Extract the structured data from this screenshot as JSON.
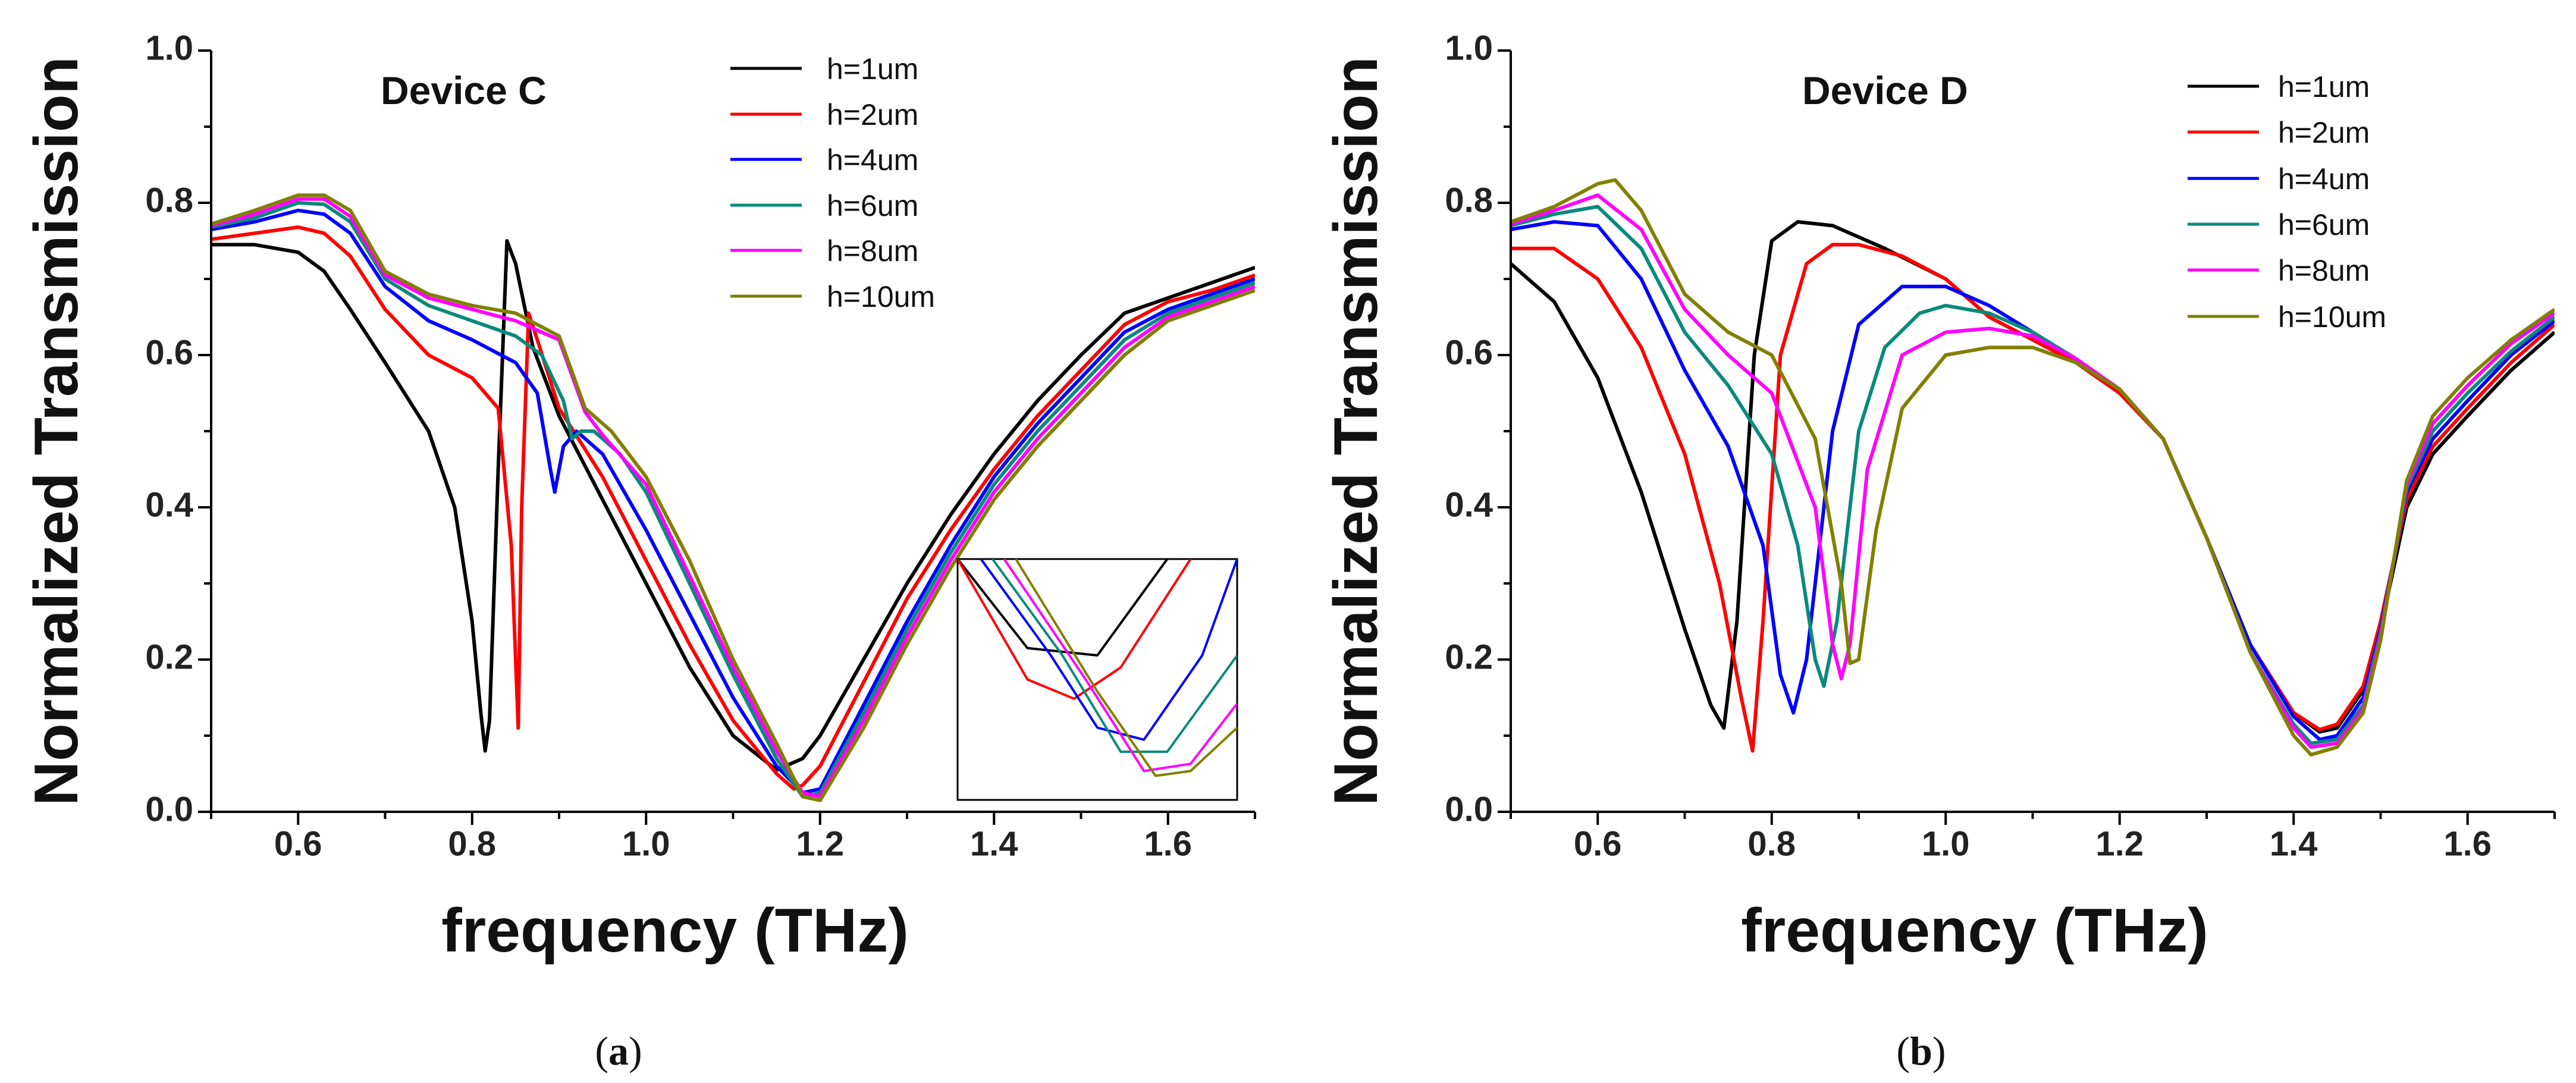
{
  "chart_data": [
    {
      "type": "line",
      "title": "Device C",
      "xlabel": "frequency (THz)",
      "ylabel": "Normalized Transmission",
      "xlim": [
        0.5,
        1.7
      ],
      "ylim": [
        0.0,
        1.0
      ],
      "xticks": [
        "0.6",
        "0.8",
        "1.0",
        "1.2",
        "1.4",
        "1.6"
      ],
      "yticks": [
        "0.0",
        "0.2",
        "0.4",
        "0.6",
        "0.8",
        "1.0"
      ],
      "caption": "a",
      "legend": [
        "h=1um",
        "h=2um",
        "h=4um",
        "h=6um",
        "h=8um",
        "h=10um"
      ],
      "series": [
        {
          "name": "h=1um",
          "color": "#000000",
          "x": [
            0.5,
            0.55,
            0.6,
            0.63,
            0.66,
            0.7,
            0.75,
            0.78,
            0.8,
            0.81,
            0.815,
            0.82,
            0.83,
            0.84,
            0.85,
            0.87,
            0.9,
            0.95,
            1.0,
            1.05,
            1.1,
            1.15,
            1.18,
            1.2,
            1.25,
            1.3,
            1.35,
            1.4,
            1.45,
            1.5,
            1.55,
            1.6,
            1.65,
            1.7
          ],
          "y": [
            0.745,
            0.745,
            0.735,
            0.71,
            0.66,
            0.59,
            0.5,
            0.4,
            0.25,
            0.13,
            0.08,
            0.12,
            0.45,
            0.75,
            0.72,
            0.61,
            0.52,
            0.41,
            0.3,
            0.19,
            0.1,
            0.055,
            0.07,
            0.1,
            0.2,
            0.3,
            0.39,
            0.47,
            0.54,
            0.6,
            0.655,
            0.675,
            0.695,
            0.715
          ]
        },
        {
          "name": "h=2um",
          "color": "#ff0000",
          "x": [
            0.5,
            0.55,
            0.6,
            0.63,
            0.66,
            0.7,
            0.75,
            0.8,
            0.83,
            0.845,
            0.853,
            0.857,
            0.865,
            0.875,
            0.9,
            0.95,
            1.0,
            1.05,
            1.1,
            1.15,
            1.17,
            1.18,
            1.2,
            1.25,
            1.3,
            1.35,
            1.4,
            1.45,
            1.5,
            1.55,
            1.6,
            1.65,
            1.7
          ],
          "y": [
            0.752,
            0.76,
            0.768,
            0.76,
            0.73,
            0.66,
            0.6,
            0.57,
            0.53,
            0.35,
            0.11,
            0.4,
            0.655,
            0.62,
            0.53,
            0.44,
            0.33,
            0.22,
            0.12,
            0.05,
            0.03,
            0.035,
            0.06,
            0.17,
            0.28,
            0.37,
            0.45,
            0.52,
            0.58,
            0.64,
            0.67,
            0.685,
            0.705
          ]
        },
        {
          "name": "h=4um",
          "color": "#0000ff",
          "x": [
            0.5,
            0.55,
            0.6,
            0.63,
            0.66,
            0.7,
            0.75,
            0.8,
            0.85,
            0.875,
            0.89,
            0.895,
            0.905,
            0.92,
            0.95,
            1.0,
            1.05,
            1.1,
            1.15,
            1.18,
            1.2,
            1.25,
            1.3,
            1.35,
            1.4,
            1.45,
            1.5,
            1.55,
            1.6,
            1.65,
            1.7
          ],
          "y": [
            0.765,
            0.775,
            0.79,
            0.785,
            0.76,
            0.69,
            0.645,
            0.62,
            0.59,
            0.55,
            0.45,
            0.42,
            0.48,
            0.5,
            0.47,
            0.37,
            0.26,
            0.15,
            0.06,
            0.025,
            0.03,
            0.14,
            0.25,
            0.35,
            0.44,
            0.51,
            0.57,
            0.63,
            0.66,
            0.68,
            0.7
          ]
        },
        {
          "name": "h=6um",
          "color": "#0a8a7a",
          "x": [
            0.5,
            0.55,
            0.6,
            0.63,
            0.66,
            0.7,
            0.75,
            0.8,
            0.85,
            0.88,
            0.905,
            0.915,
            0.925,
            0.94,
            0.97,
            1.0,
            1.05,
            1.1,
            1.15,
            1.18,
            1.2,
            1.25,
            1.3,
            1.35,
            1.4,
            1.45,
            1.5,
            1.55,
            1.6,
            1.65,
            1.7
          ],
          "y": [
            0.768,
            0.78,
            0.8,
            0.798,
            0.775,
            0.7,
            0.665,
            0.645,
            0.625,
            0.6,
            0.54,
            0.49,
            0.5,
            0.5,
            0.47,
            0.42,
            0.3,
            0.18,
            0.07,
            0.02,
            0.025,
            0.13,
            0.24,
            0.34,
            0.43,
            0.5,
            0.56,
            0.62,
            0.655,
            0.675,
            0.695
          ]
        },
        {
          "name": "h=8um",
          "color": "#ff00ff",
          "x": [
            0.5,
            0.55,
            0.6,
            0.63,
            0.66,
            0.7,
            0.75,
            0.8,
            0.85,
            0.9,
            0.93,
            0.95,
            1.0,
            1.05,
            1.1,
            1.15,
            1.18,
            1.2,
            1.25,
            1.3,
            1.35,
            1.4,
            1.45,
            1.5,
            1.55,
            1.6,
            1.65,
            1.7
          ],
          "y": [
            0.77,
            0.785,
            0.805,
            0.805,
            0.782,
            0.705,
            0.675,
            0.66,
            0.645,
            0.62,
            0.525,
            0.495,
            0.43,
            0.31,
            0.19,
            0.08,
            0.025,
            0.02,
            0.12,
            0.23,
            0.33,
            0.42,
            0.49,
            0.55,
            0.61,
            0.65,
            0.67,
            0.69
          ]
        },
        {
          "name": "h=10um",
          "color": "#808000",
          "x": [
            0.5,
            0.55,
            0.6,
            0.63,
            0.66,
            0.7,
            0.75,
            0.8,
            0.85,
            0.9,
            0.93,
            0.96,
            1.0,
            1.05,
            1.1,
            1.15,
            1.18,
            1.2,
            1.25,
            1.3,
            1.35,
            1.4,
            1.45,
            1.5,
            1.55,
            1.6,
            1.65,
            1.7
          ],
          "y": [
            0.772,
            0.79,
            0.81,
            0.81,
            0.79,
            0.71,
            0.68,
            0.665,
            0.655,
            0.625,
            0.53,
            0.5,
            0.44,
            0.33,
            0.2,
            0.09,
            0.02,
            0.015,
            0.11,
            0.22,
            0.32,
            0.41,
            0.48,
            0.54,
            0.6,
            0.645,
            0.665,
            0.685
          ]
        }
      ],
      "inset": {
        "xlim": [
          1.12,
          1.24
        ],
        "ylim": [
          0.0,
          0.1
        ],
        "series": [
          {
            "name": "h=1um",
            "color": "#000000",
            "x": [
              1.12,
              1.15,
              1.18,
              1.21
            ],
            "y": [
              0.1,
              0.063,
              0.06,
              0.1
            ]
          },
          {
            "name": "h=2um",
            "color": "#ff0000",
            "x": [
              1.12,
              1.15,
              1.17,
              1.19,
              1.22
            ],
            "y": [
              0.1,
              0.05,
              0.042,
              0.055,
              0.1
            ]
          },
          {
            "name": "h=4um",
            "color": "#0000ff",
            "x": [
              1.13,
              1.16,
              1.18,
              1.2,
              1.225,
              1.24
            ],
            "y": [
              0.1,
              0.06,
              0.03,
              0.025,
              0.06,
              0.1
            ]
          },
          {
            "name": "h=6um",
            "color": "#0a8a7a",
            "x": [
              1.135,
              1.165,
              1.19,
              1.21,
              1.24
            ],
            "y": [
              0.1,
              0.06,
              0.02,
              0.02,
              0.06
            ]
          },
          {
            "name": "h=8um",
            "color": "#ff00ff",
            "x": [
              1.14,
              1.175,
              1.2,
              1.22,
              1.24
            ],
            "y": [
              0.1,
              0.05,
              0.012,
              0.015,
              0.04
            ]
          },
          {
            "name": "h=10um",
            "color": "#808000",
            "x": [
              1.145,
              1.18,
              1.205,
              1.22,
              1.24
            ],
            "y": [
              0.1,
              0.045,
              0.01,
              0.012,
              0.03
            ]
          }
        ]
      }
    },
    {
      "type": "line",
      "title": "Device D",
      "xlabel": "frequency (THz)",
      "ylabel": "Normalized Transmission",
      "xlim": [
        0.5,
        1.7
      ],
      "ylim": [
        0.0,
        1.0
      ],
      "xticks": [
        "0.6",
        "0.8",
        "1.0",
        "1.2",
        "1.4",
        "1.6"
      ],
      "yticks": [
        "0.0",
        "0.2",
        "0.4",
        "0.6",
        "0.8",
        "1.0"
      ],
      "caption": "b",
      "legend": [
        "h=1um",
        "h=2um",
        "h=4um",
        "h=6um",
        "h=8um",
        "h=10um"
      ],
      "series": [
        {
          "name": "h=1um",
          "color": "#000000",
          "x": [
            0.5,
            0.55,
            0.6,
            0.65,
            0.7,
            0.73,
            0.745,
            0.76,
            0.78,
            0.8,
            0.83,
            0.87,
            0.93,
            1.0,
            1.05,
            1.1,
            1.15,
            1.2,
            1.25,
            1.3,
            1.35,
            1.4,
            1.43,
            1.45,
            1.48,
            1.5,
            1.53,
            1.56,
            1.6,
            1.65,
            1.7
          ],
          "y": [
            0.72,
            0.67,
            0.57,
            0.42,
            0.24,
            0.14,
            0.11,
            0.25,
            0.6,
            0.75,
            0.775,
            0.77,
            0.74,
            0.7,
            0.65,
            0.62,
            0.59,
            0.55,
            0.49,
            0.36,
            0.22,
            0.13,
            0.105,
            0.11,
            0.16,
            0.24,
            0.4,
            0.47,
            0.52,
            0.58,
            0.63
          ]
        },
        {
          "name": "h=2um",
          "color": "#ff0000",
          "x": [
            0.5,
            0.55,
            0.6,
            0.65,
            0.7,
            0.74,
            0.765,
            0.778,
            0.79,
            0.81,
            0.84,
            0.87,
            0.9,
            0.95,
            1.0,
            1.05,
            1.1,
            1.15,
            1.2,
            1.25,
            1.3,
            1.35,
            1.4,
            1.43,
            1.45,
            1.48,
            1.5,
            1.53,
            1.56,
            1.6,
            1.65,
            1.7
          ],
          "y": [
            0.74,
            0.74,
            0.7,
            0.61,
            0.47,
            0.3,
            0.15,
            0.08,
            0.25,
            0.6,
            0.72,
            0.745,
            0.745,
            0.73,
            0.7,
            0.65,
            0.62,
            0.59,
            0.55,
            0.49,
            0.36,
            0.22,
            0.13,
            0.108,
            0.115,
            0.165,
            0.25,
            0.41,
            0.48,
            0.53,
            0.59,
            0.64
          ]
        },
        {
          "name": "h=4um",
          "color": "#0000ff",
          "x": [
            0.5,
            0.55,
            0.6,
            0.65,
            0.7,
            0.75,
            0.79,
            0.81,
            0.825,
            0.84,
            0.87,
            0.9,
            0.95,
            1.0,
            1.05,
            1.1,
            1.15,
            1.2,
            1.25,
            1.3,
            1.35,
            1.4,
            1.43,
            1.45,
            1.48,
            1.5,
            1.53,
            1.56,
            1.6,
            1.65,
            1.7
          ],
          "y": [
            0.765,
            0.775,
            0.77,
            0.7,
            0.58,
            0.48,
            0.35,
            0.18,
            0.13,
            0.2,
            0.5,
            0.64,
            0.69,
            0.69,
            0.665,
            0.63,
            0.595,
            0.555,
            0.49,
            0.36,
            0.22,
            0.125,
            0.095,
            0.1,
            0.15,
            0.24,
            0.42,
            0.49,
            0.54,
            0.6,
            0.645
          ]
        },
        {
          "name": "h=6um",
          "color": "#0a8a7a",
          "x": [
            0.5,
            0.55,
            0.6,
            0.65,
            0.7,
            0.75,
            0.8,
            0.83,
            0.85,
            0.86,
            0.875,
            0.9,
            0.93,
            0.97,
            1.0,
            1.05,
            1.1,
            1.15,
            1.2,
            1.25,
            1.3,
            1.35,
            1.4,
            1.42,
            1.45,
            1.48,
            1.5,
            1.53,
            1.56,
            1.6,
            1.65,
            1.7
          ],
          "y": [
            0.77,
            0.785,
            0.795,
            0.74,
            0.63,
            0.56,
            0.47,
            0.35,
            0.2,
            0.165,
            0.25,
            0.5,
            0.61,
            0.655,
            0.665,
            0.655,
            0.63,
            0.595,
            0.555,
            0.49,
            0.36,
            0.21,
            0.115,
            0.09,
            0.095,
            0.14,
            0.235,
            0.425,
            0.5,
            0.55,
            0.605,
            0.65
          ]
        },
        {
          "name": "h=8um",
          "color": "#ff00ff",
          "x": [
            0.5,
            0.55,
            0.6,
            0.65,
            0.7,
            0.75,
            0.8,
            0.85,
            0.87,
            0.88,
            0.89,
            0.91,
            0.95,
            1.0,
            1.05,
            1.1,
            1.15,
            1.2,
            1.25,
            1.3,
            1.35,
            1.4,
            1.42,
            1.45,
            1.48,
            1.5,
            1.53,
            1.56,
            1.6,
            1.65,
            1.7
          ],
          "y": [
            0.772,
            0.79,
            0.81,
            0.765,
            0.66,
            0.6,
            0.55,
            0.4,
            0.22,
            0.175,
            0.22,
            0.45,
            0.6,
            0.63,
            0.635,
            0.625,
            0.595,
            0.555,
            0.49,
            0.36,
            0.21,
            0.11,
            0.085,
            0.09,
            0.135,
            0.23,
            0.43,
            0.51,
            0.56,
            0.615,
            0.655
          ]
        },
        {
          "name": "h=10um",
          "color": "#808000",
          "x": [
            0.5,
            0.55,
            0.6,
            0.62,
            0.65,
            0.7,
            0.75,
            0.8,
            0.85,
            0.88,
            0.89,
            0.9,
            0.92,
            0.95,
            1.0,
            1.05,
            1.1,
            1.15,
            1.2,
            1.25,
            1.3,
            1.35,
            1.4,
            1.42,
            1.45,
            1.48,
            1.5,
            1.53,
            1.56,
            1.6,
            1.65,
            1.7
          ],
          "y": [
            0.775,
            0.795,
            0.825,
            0.83,
            0.79,
            0.68,
            0.63,
            0.6,
            0.49,
            0.3,
            0.195,
            0.2,
            0.37,
            0.53,
            0.6,
            0.61,
            0.61,
            0.59,
            0.555,
            0.49,
            0.36,
            0.21,
            0.1,
            0.075,
            0.085,
            0.13,
            0.225,
            0.435,
            0.52,
            0.57,
            0.62,
            0.66
          ]
        }
      ]
    }
  ]
}
